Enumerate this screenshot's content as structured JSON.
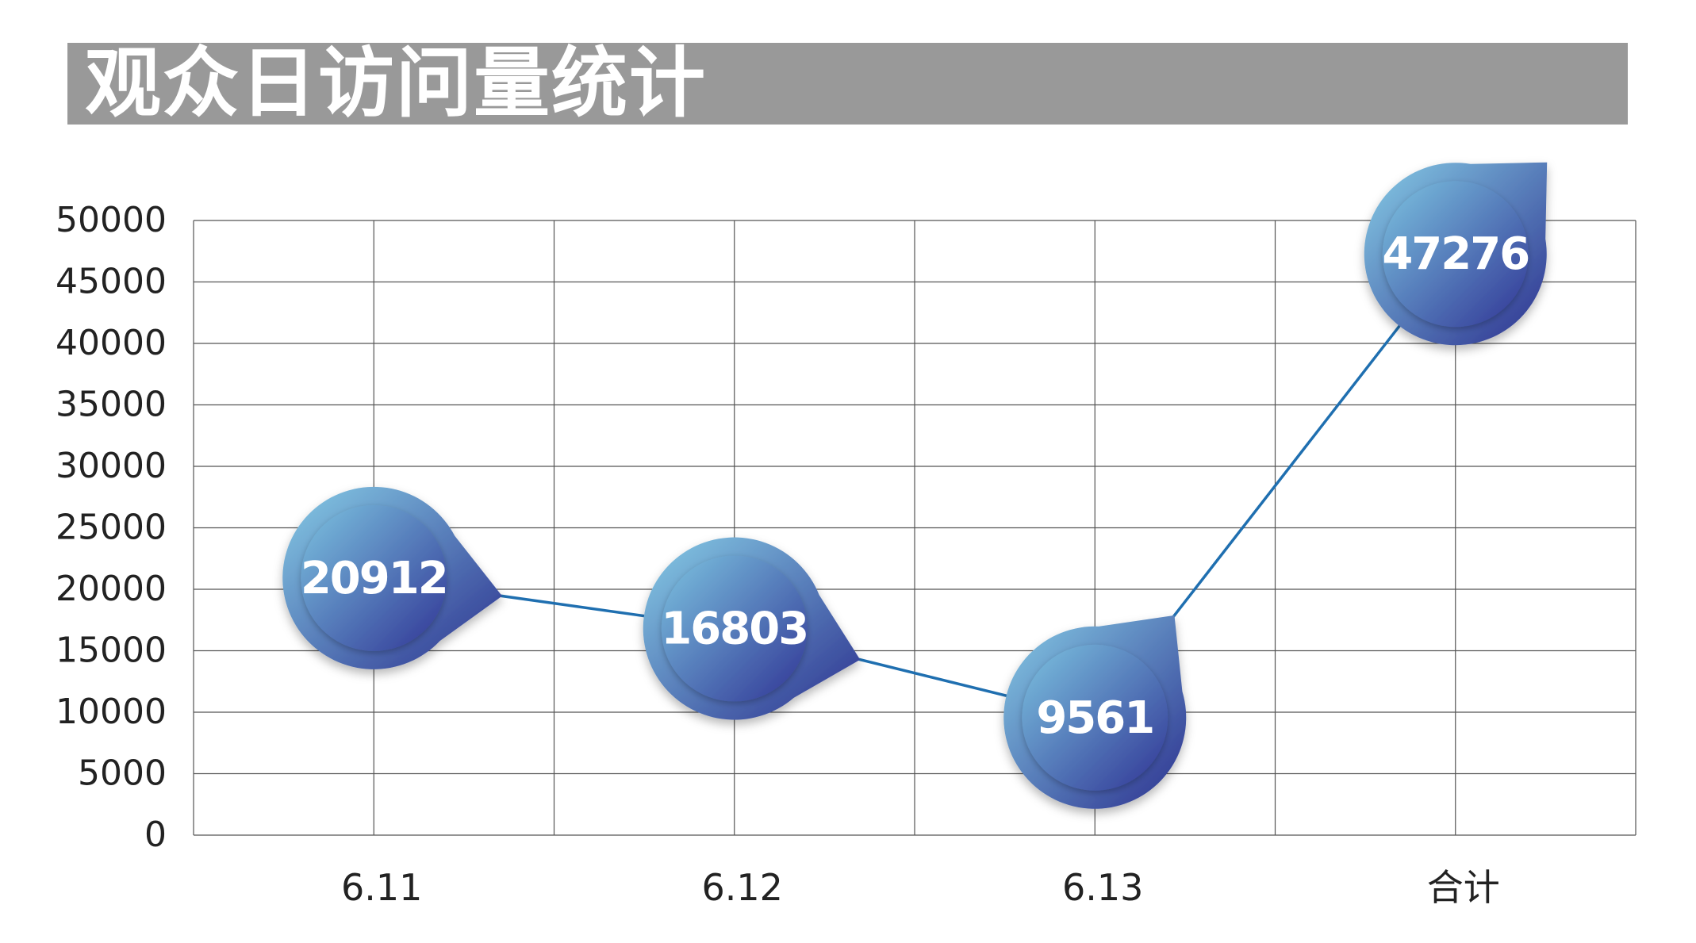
{
  "title": "观众日访问量统计",
  "colors": {
    "title_bar": "#999999",
    "title_text": "#ffffff",
    "grid": "#555555",
    "line": "#1f6fb0",
    "marker_light": "#86cde6",
    "marker_dark": "#2b2f8e",
    "label_text": "#ffffff"
  },
  "chart_data": {
    "type": "line",
    "title": "观众日访问量统计",
    "xlabel": "",
    "ylabel": "",
    "categories": [
      "6.11",
      "6.12",
      "6.13",
      "合计"
    ],
    "series": [
      {
        "values": [
          20912,
          16803,
          9561,
          47276
        ]
      }
    ],
    "data_labels": [
      "20912",
      "16803",
      "9561",
      "47276"
    ],
    "ylim": [
      0,
      50000
    ],
    "yticks": [
      "0",
      "5000",
      "10000",
      "15000",
      "20000",
      "25000",
      "30000",
      "35000",
      "40000",
      "45000",
      "50000"
    ],
    "grid": true,
    "marker": "teardrop",
    "legend": "none"
  }
}
